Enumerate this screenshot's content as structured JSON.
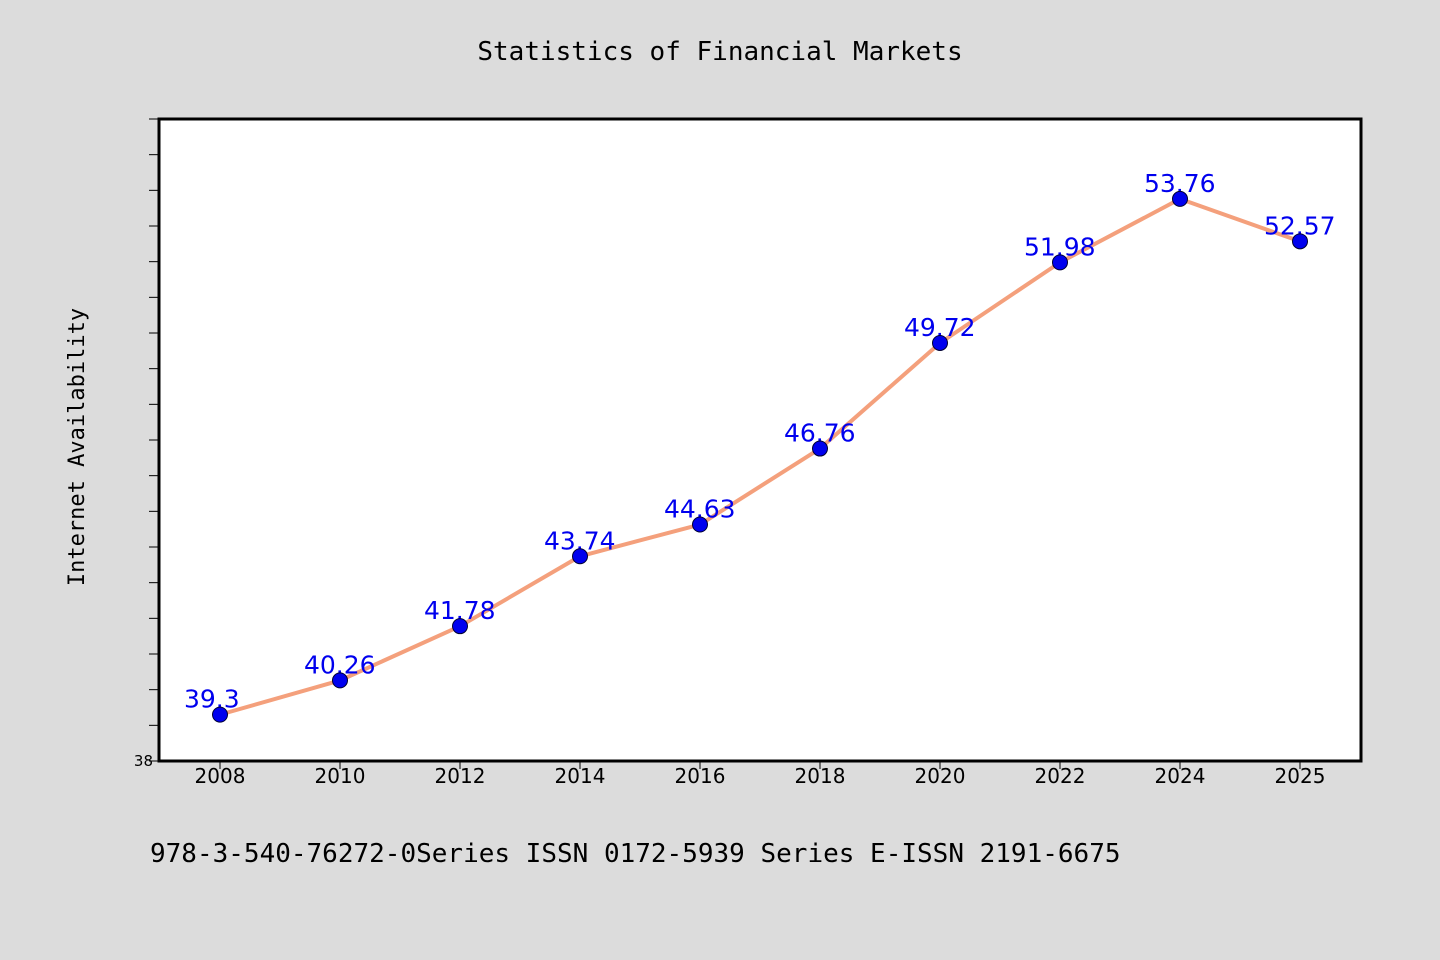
{
  "chart_data": {
    "type": "line",
    "title": "Statistics of Financial Markets",
    "xlabel": "",
    "ylabel": "Internet Availability",
    "categories": [
      "2008",
      "2010",
      "2012",
      "2014",
      "2016",
      "2018",
      "2020",
      "2022",
      "2024",
      "2025"
    ],
    "series": [
      {
        "values": [
          39.3,
          40.26,
          41.78,
          43.74,
          44.63,
          46.76,
          49.72,
          51.98,
          53.76,
          52.57
        ],
        "data_labels": [
          "39.3",
          "40.26",
          "41.78",
          "43.74",
          "44.63",
          "46.76",
          "49.72",
          "51.98",
          "53.76",
          "52.57"
        ]
      }
    ],
    "ylim": [
      38,
      56
    ],
    "y_tick_labels": [
      "38"
    ],
    "y_minor_tick_step": 1,
    "grid": false,
    "legend": "none",
    "colors": {
      "line": "#f4a07c",
      "marker": "#0000ee",
      "data_label": "#0000ee",
      "plot_background": "#ffffff",
      "figure_background": "#dcdcdc"
    }
  },
  "footer": {
    "text": "978-3-540-76272-0Series ISSN 0172-5939 Series E-ISSN 2191-6675"
  }
}
